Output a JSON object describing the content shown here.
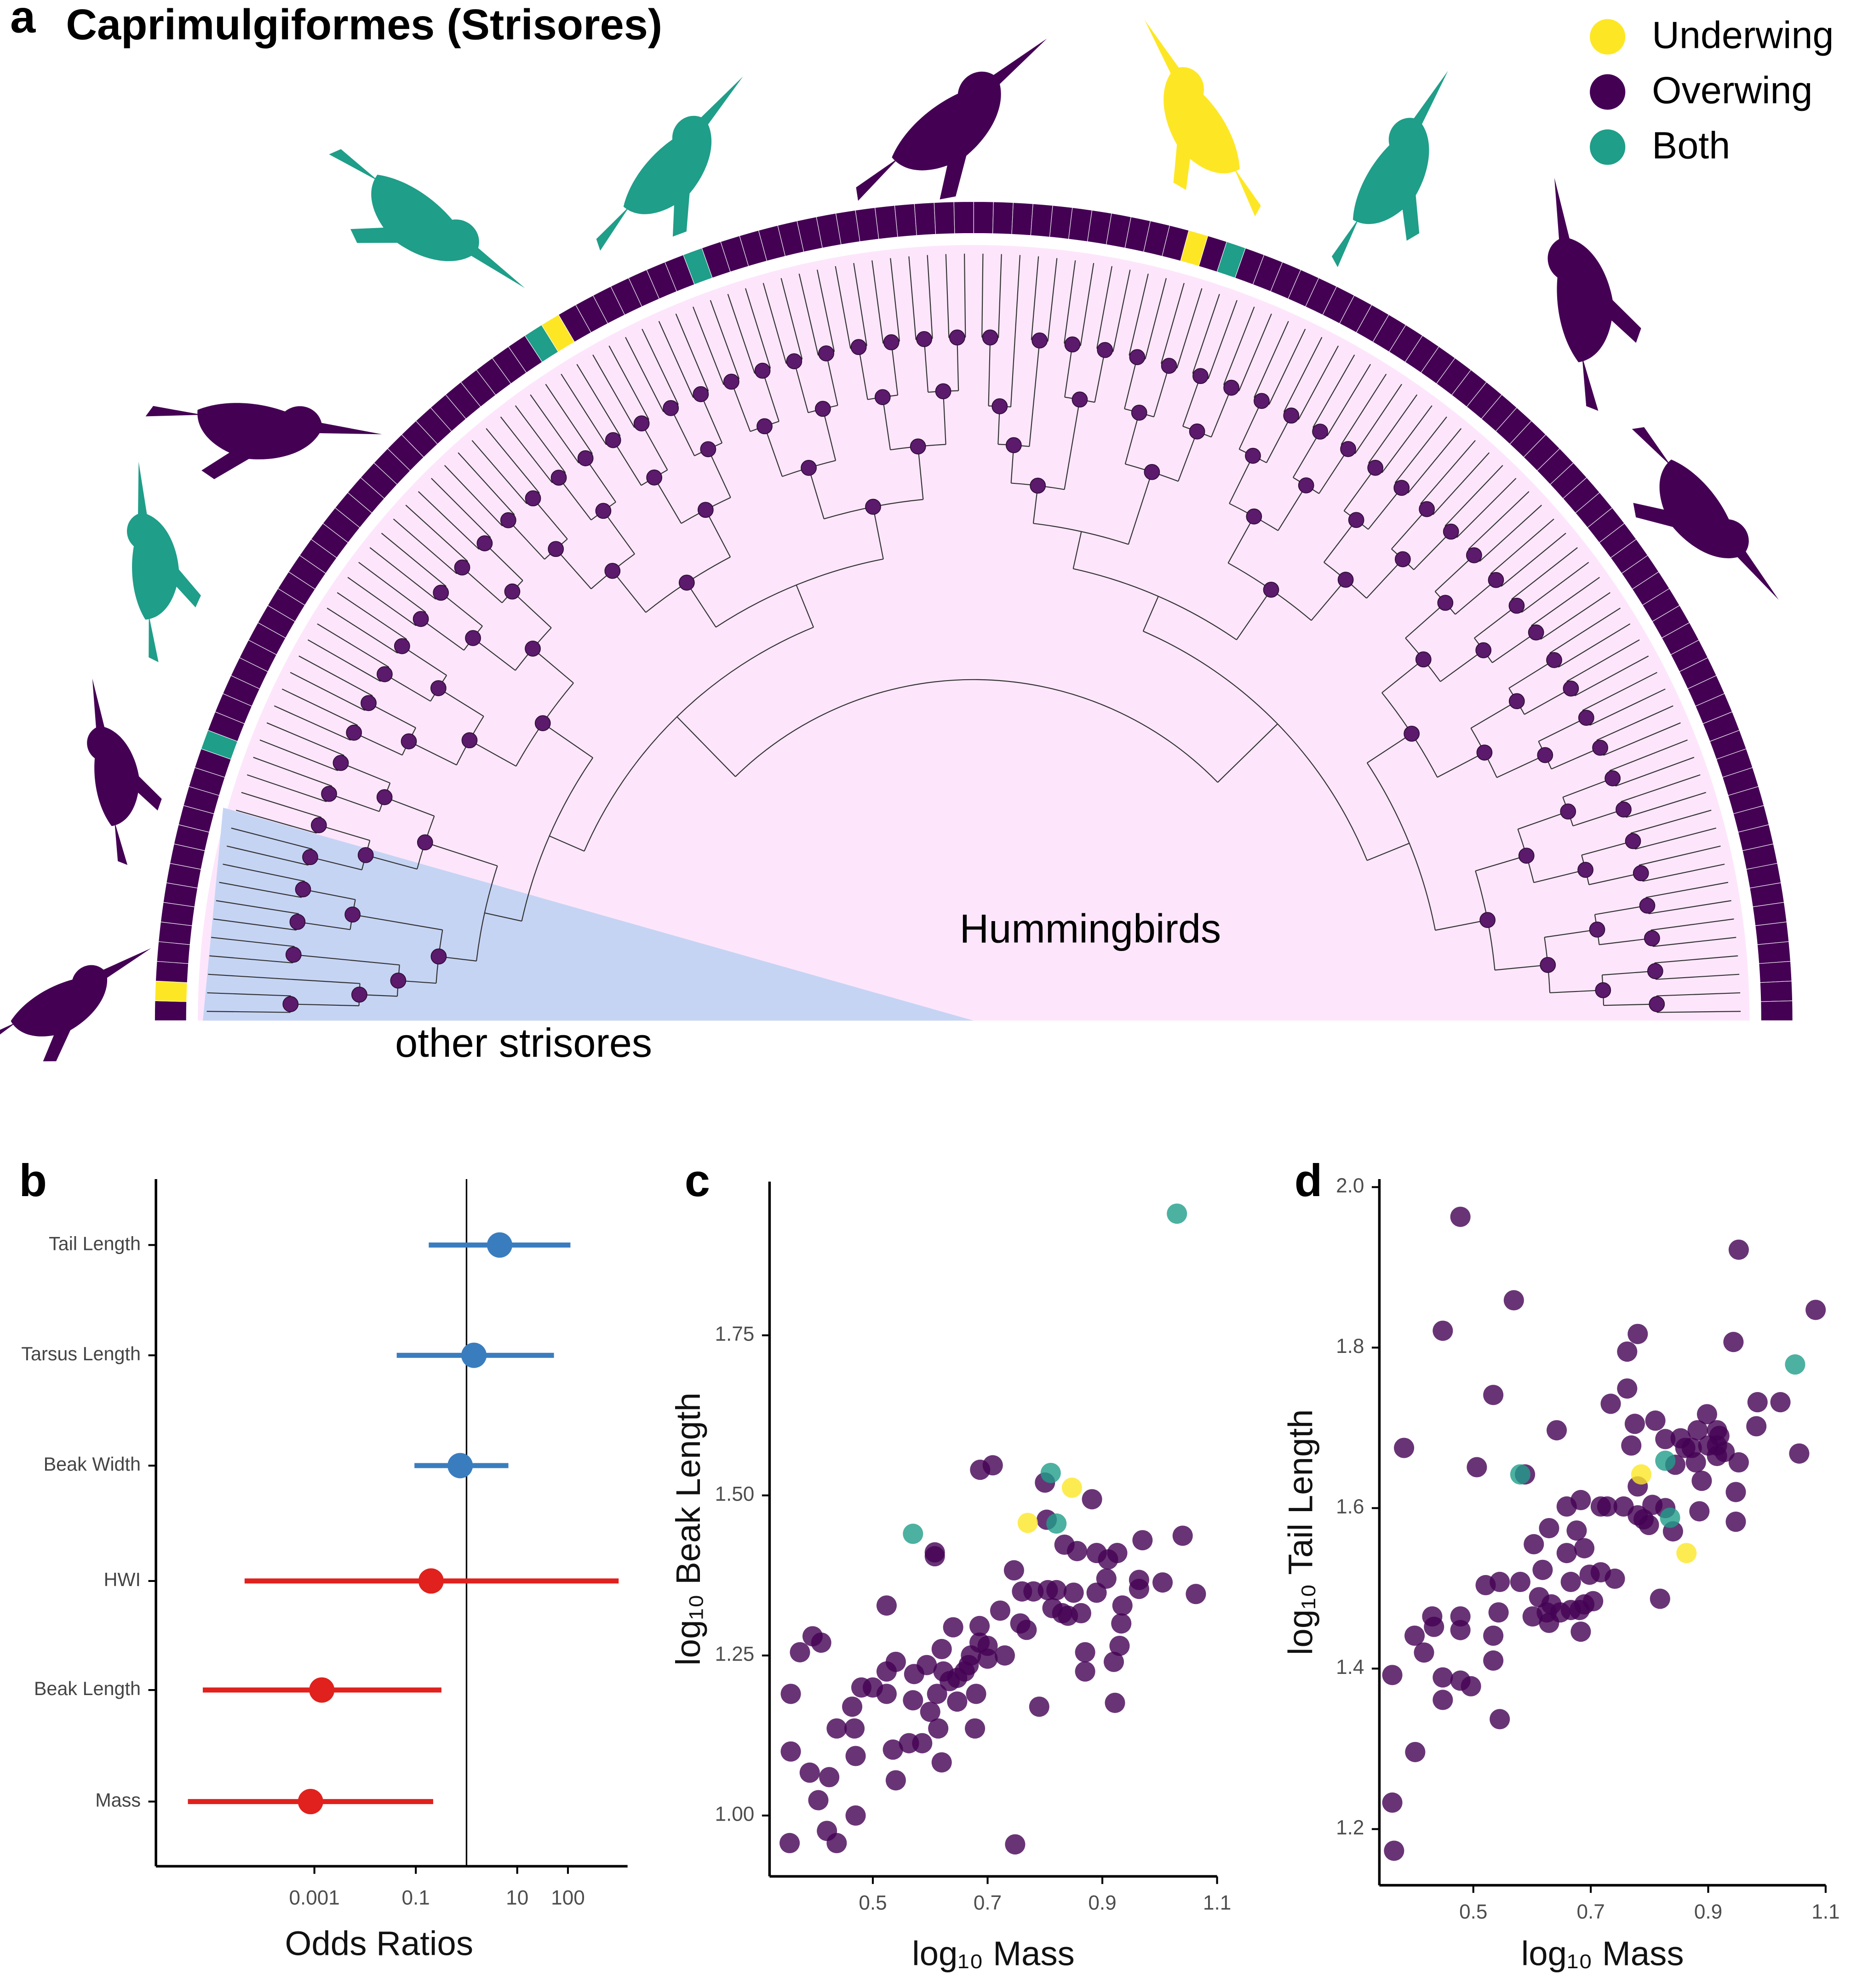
{
  "chart_data": [
    {
      "type": "tree",
      "panel": "a",
      "title": "Caprimulgiformes (Strisores)",
      "legend": [
        {
          "name": "Underwing",
          "color": "#fde725"
        },
        {
          "name": "Overwing",
          "color": "#440154"
        },
        {
          "name": "Both",
          "color": "#1f9e89"
        }
      ],
      "labels": [
        "Hummingbirds",
        "other strisores"
      ],
      "silhouettes": [
        "Overwing",
        "Overwing",
        "Both",
        "Overwing",
        "Both",
        "Both",
        "Overwing",
        "Underwing",
        "Both",
        "Overwing",
        "Overwing"
      ],
      "ring": [
        "Overwing",
        "Underwing",
        "Overwing",
        "Overwing",
        "Overwing",
        "Overwing",
        "Overwing",
        "Overwing",
        "Overwing",
        "Overwing",
        "Overwing",
        "Overwing",
        "Overwing",
        "Overwing",
        "Both",
        "Overwing",
        "Overwing",
        "Overwing",
        "Overwing",
        "Overwing",
        "Overwing",
        "Overwing",
        "Overwing",
        "Overwing",
        "Overwing",
        "Overwing",
        "Overwing",
        "Overwing",
        "Overwing",
        "Overwing",
        "Overwing",
        "Overwing",
        "Overwing",
        "Overwing",
        "Overwing",
        "Overwing",
        "Overwing",
        "Overwing",
        "Overwing",
        "Overwing",
        "Overwing",
        "Both",
        "Underwing",
        "Overwing",
        "Overwing",
        "Overwing",
        "Overwing",
        "Overwing",
        "Overwing",
        "Overwing",
        "Both",
        "Overwing",
        "Overwing",
        "Overwing",
        "Overwing",
        "Overwing",
        "Overwing",
        "Overwing",
        "Overwing",
        "Overwing",
        "Overwing",
        "Overwing",
        "Overwing",
        "Overwing",
        "Overwing",
        "Overwing",
        "Overwing",
        "Overwing",
        "Overwing",
        "Overwing",
        "Overwing",
        "Overwing",
        "Overwing",
        "Overwing",
        "Overwing",
        "Overwing",
        "Underwing",
        "Overwing",
        "Both",
        "Overwing",
        "Overwing",
        "Overwing",
        "Overwing",
        "Overwing",
        "Overwing",
        "Overwing",
        "Overwing",
        "Overwing",
        "Overwing",
        "Overwing",
        "Overwing",
        "Overwing",
        "Overwing",
        "Overwing",
        "Overwing",
        "Overwing",
        "Overwing",
        "Overwing",
        "Overwing",
        "Overwing",
        "Overwing",
        "Overwing",
        "Overwing",
        "Overwing",
        "Overwing",
        "Overwing",
        "Overwing",
        "Overwing",
        "Overwing",
        "Overwing",
        "Overwing",
        "Overwing",
        "Overwing",
        "Overwing",
        "Overwing",
        "Overwing",
        "Overwing",
        "Overwing",
        "Overwing",
        "Overwing",
        "Overwing",
        "Overwing",
        "Overwing",
        "Overwing",
        "Overwing",
        "Overwing",
        "Overwing",
        "Overwing",
        "Overwing",
        "Overwing"
      ]
    },
    {
      "type": "forest",
      "panel": "b",
      "x_label": "Odds Ratios",
      "log_x": true,
      "categories": [
        "Tail Length",
        "Tarsus Length",
        "Beak Width",
        "HWI",
        "Beak Length",
        "Mass"
      ],
      "values": [
        4.5,
        1.4,
        0.75,
        0.2,
        0.0014,
        0.00084
      ],
      "lower": [
        0.18,
        0.042,
        0.094,
        4.2e-05,
        6.3e-06,
        3.2e-06
      ],
      "upper": [
        112,
        53,
        6.7,
        1000,
        0.32,
        0.22
      ],
      "colors": [
        "#3a7dbf",
        "#3a7dbf",
        "#3a7dbf",
        "#e0211d",
        "#e0211d",
        "#e0211d"
      ],
      "ref_line": 1,
      "xlim": [
        7.5e-07,
        1500
      ],
      "xticks": [
        0.001,
        0.1,
        10,
        100
      ]
    },
    {
      "type": "scatter",
      "panel": "c",
      "x_label": "log₁₀ Mass",
      "y_label": "log₁₀ Beak Length",
      "xlim": [
        0.32,
        1.1
      ],
      "ylim": [
        0.905,
        1.99
      ],
      "xticks": [
        0.5,
        0.7,
        0.9,
        1.1
      ],
      "yticks": [
        {
          "value": 1.0,
          "label": "1.00"
        },
        {
          "value": 1.25,
          "label": "1.25"
        },
        {
          "value": 1.5,
          "label": "1.50"
        },
        {
          "value": 1.75,
          "label": "1.75"
        }
      ],
      "series": [
        {
          "color": "#440154",
          "x": [
            0.357,
            0.357,
            0.395,
            0.373,
            0.41,
            0.39,
            0.405,
            0.355,
            0.42,
            0.437,
            0.437,
            0.424,
            0.47,
            0.468,
            0.464,
            0.48,
            0.5,
            0.47,
            0.524,
            0.524,
            0.524,
            0.535,
            0.54,
            0.54,
            0.563,
            0.572,
            0.57,
            0.594,
            0.586,
            0.6,
            0.612,
            0.614,
            0.62,
            0.62,
            0.623,
            0.634,
            0.647,
            0.647,
            0.66,
            0.667,
            0.671,
            0.678,
            0.68,
            0.608,
            0.608,
            0.64,
            0.686,
            0.686,
            0.7,
            0.7,
            0.722,
            0.73,
            0.687,
            0.709,
            0.748,
            0.746,
            0.76,
            0.757,
            0.768,
            0.78,
            0.79,
            0.8,
            0.803,
            0.805,
            0.813,
            0.82,
            0.83,
            0.834,
            0.84,
            0.85,
            0.856,
            0.863,
            0.87,
            0.87,
            0.882,
            0.89,
            0.89,
            0.907,
            0.91,
            0.92,
            0.922,
            0.926,
            0.93,
            0.933,
            0.935,
            0.964,
            0.97,
            0.964,
            1.005,
            1.04,
            1.063
          ],
          "values": [
            1.19,
            1.1,
            1.28,
            1.255,
            1.27,
            1.067,
            1.024,
            0.957,
            0.976,
            0.957,
            1.136,
            1.06,
            1.093,
            1.136,
            1.17,
            1.2,
            1.2,
            1.0,
            1.225,
            1.19,
            1.328,
            1.103,
            1.055,
            1.24,
            1.113,
            1.221,
            1.18,
            1.235,
            1.113,
            1.162,
            1.19,
            1.136,
            1.26,
            1.083,
            1.225,
            1.21,
            1.215,
            1.178,
            1.225,
            1.235,
            1.25,
            1.136,
            1.19,
            1.405,
            1.411,
            1.294,
            1.296,
            1.27,
            1.265,
            1.245,
            1.32,
            1.25,
            1.54,
            1.547,
            0.955,
            1.383,
            1.35,
            1.3,
            1.29,
            1.35,
            1.17,
            1.52,
            1.462,
            1.352,
            1.324,
            1.352,
            1.316,
            1.423,
            1.312,
            1.348,
            1.413,
            1.316,
            1.255,
            1.225,
            1.494,
            1.41,
            1.348,
            1.37,
            1.4,
            1.24,
            1.176,
            1.41,
            1.265,
            1.3,
            1.328,
            1.354,
            1.43,
            1.368,
            1.364,
            1.437,
            1.346
          ]
        },
        {
          "color": "#1f9e89",
          "x": [
            1.03,
            0.57,
            0.81,
            0.82
          ],
          "values": [
            1.94,
            1.44,
            1.535,
            1.456
          ]
        },
        {
          "color": "#fde725",
          "x": [
            0.77,
            0.847
          ],
          "values": [
            1.457,
            1.512
          ]
        }
      ]
    },
    {
      "type": "scatter",
      "panel": "d",
      "x_label": "log₁₀ Mass",
      "y_label": "log₁₀ Tail Length",
      "xlim": [
        0.34,
        1.1
      ],
      "ylim": [
        1.13,
        2.01
      ],
      "xticks": [
        0.5,
        0.7,
        0.9,
        1.1
      ],
      "yticks": [
        1.2,
        1.4,
        1.6,
        1.8,
        {
          "value": 2.0,
          "label": "2.0"
        }
      ],
      "series": [
        {
          "color": "#440154",
          "x": [
            0.365,
            0.382,
            0.4,
            0.401,
            0.416,
            0.43,
            0.433,
            0.448,
            0.448,
            0.448,
            0.478,
            0.478,
            0.478,
            0.478,
            0.496,
            0.506,
            0.521,
            0.534,
            0.534,
            0.534,
            0.543,
            0.545,
            0.545,
            0.569,
            0.58,
            0.588,
            0.601,
            0.603,
            0.612,
            0.618,
            0.629,
            0.625,
            0.629,
            0.633,
            0.642,
            0.648,
            0.659,
            0.659,
            0.666,
            0.666,
            0.676,
            0.681,
            0.683,
            0.689,
            0.689,
            0.683,
            0.698,
            0.704,
            0.717,
            0.728,
            0.717,
            0.734,
            0.741,
            0.756,
            0.762,
            0.762,
            0.769,
            0.775,
            0.78,
            0.78,
            0.78,
            0.79,
            0.799,
            0.805,
            0.81,
            0.818,
            0.827,
            0.827,
            0.84,
            0.844,
            0.853,
            0.861,
            0.872,
            0.879,
            0.882,
            0.885,
            0.889,
            0.898,
            0.9,
            0.915,
            0.915,
            0.915,
            0.919,
            0.928,
            0.943,
            0.947,
            0.947,
            0.952,
            0.952,
            0.982,
            0.984,
            1.023,
            1.055,
            1.083,
            0.362,
            0.362
          ],
          "values": [
            1.173,
            1.675,
            1.441,
            1.296,
            1.42,
            1.465,
            1.452,
            1.821,
            1.389,
            1.361,
            1.465,
            1.448,
            1.385,
            1.963,
            1.378,
            1.651,
            1.504,
            1.741,
            1.441,
            1.41,
            1.47,
            1.337,
            1.508,
            1.859,
            1.508,
            1.642,
            1.465,
            1.555,
            1.489,
            1.523,
            1.575,
            1.47,
            1.457,
            1.48,
            1.697,
            1.47,
            1.602,
            1.544,
            1.508,
            1.473,
            1.572,
            1.473,
            1.61,
            1.55,
            1.48,
            1.446,
            1.517,
            1.484,
            1.52,
            1.602,
            1.602,
            1.73,
            1.512,
            1.602,
            1.795,
            1.749,
            1.678,
            1.705,
            1.817,
            1.627,
            1.591,
            1.586,
            1.579,
            1.604,
            1.709,
            1.487,
            1.6,
            1.686,
            1.571,
            1.654,
            1.687,
            1.675,
            1.675,
            1.657,
            1.697,
            1.596,
            1.634,
            1.717,
            1.678,
            1.697,
            1.678,
            1.665,
            1.69,
            1.67,
            1.807,
            1.583,
            1.62,
            1.657,
            1.922,
            1.702,
            1.732,
            1.732,
            1.668,
            1.847,
            1.233,
            1.392
          ]
        },
        {
          "color": "#1f9e89",
          "x": [
            1.048,
            0.827,
            0.835,
            0.58
          ],
          "values": [
            1.779,
            1.659,
            1.588,
            1.642
          ]
        },
        {
          "color": "#fde725",
          "x": [
            0.786,
            0.863
          ],
          "values": [
            1.642,
            1.544
          ]
        }
      ]
    }
  ]
}
